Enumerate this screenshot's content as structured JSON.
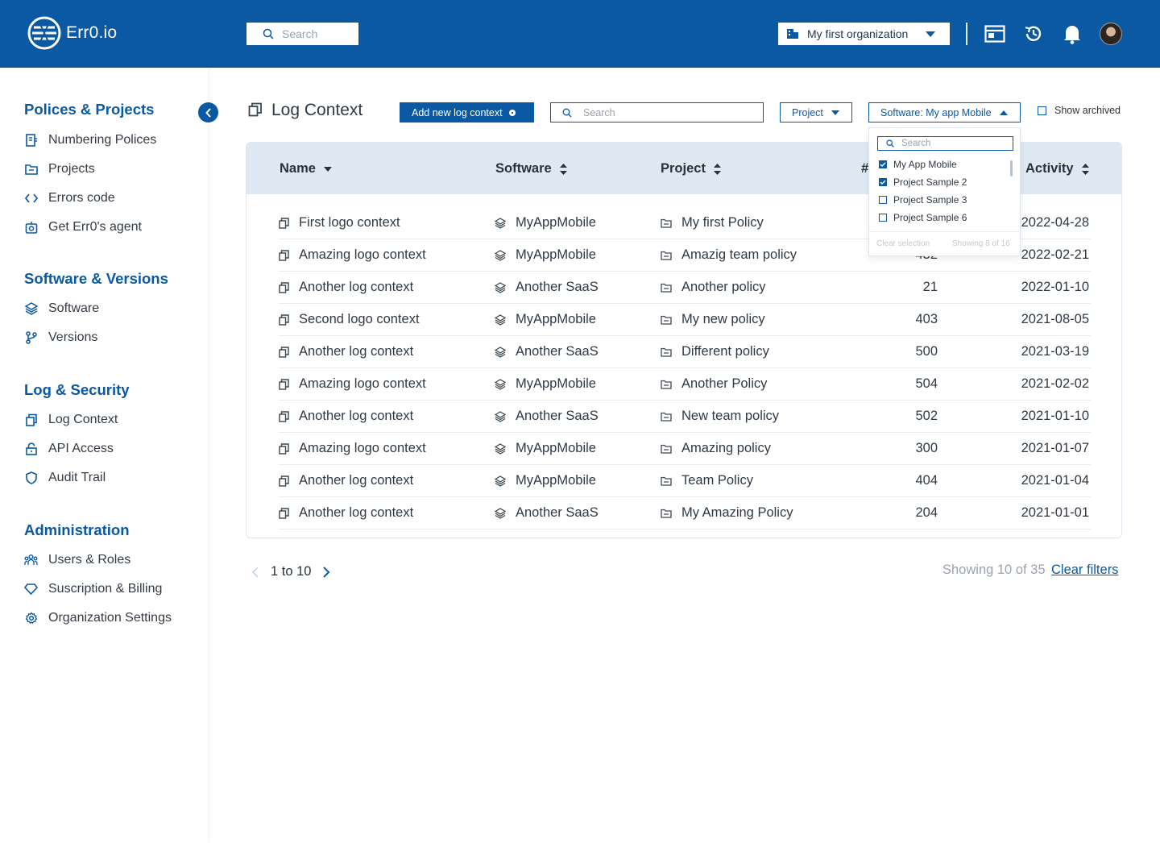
{
  "app": {
    "name": "Err0.io"
  },
  "topbar": {
    "search_placeholder": "Search",
    "org_label": "My first organization"
  },
  "sidebar": {
    "sections": [
      {
        "title": "Polices & Projects",
        "items": [
          "Numbering Polices",
          "Projects",
          "Errors code",
          "Get Err0's agent"
        ]
      },
      {
        "title": "Software & Versions",
        "items": [
          "Software",
          "Versions"
        ]
      },
      {
        "title": "Log & Security",
        "items": [
          "Log Context",
          "API Access",
          "Audit Trail"
        ]
      },
      {
        "title": "Administration",
        "items": [
          "Users & Roles",
          "Suscription & Billing",
          "Organization Settings"
        ]
      }
    ]
  },
  "page": {
    "title": "Log Context",
    "add_button": "Add new log context",
    "search_placeholder": "Search",
    "project_filter": "Project",
    "software_filter": "Software: My app Mobile",
    "show_archived": "Show archived"
  },
  "dropdown": {
    "search_placeholder": "Search",
    "options": [
      {
        "label": "My App Mobile",
        "checked": true
      },
      {
        "label": "Project Sample 2",
        "checked": true
      },
      {
        "label": "Project Sample 3",
        "checked": false
      },
      {
        "label": "Project Sample 6",
        "checked": false
      }
    ],
    "clear_selection": "Clear selection",
    "showing": "Showing 8 of 16"
  },
  "table": {
    "columns": {
      "name": "Name",
      "software": "Software",
      "project": "Project",
      "count": "#",
      "activity": "Activity"
    },
    "rows": [
      {
        "name": "First logo context",
        "software": "MyAppMobile",
        "project": "My first Policy",
        "count": "",
        "activity": "2022-04-28"
      },
      {
        "name": "Amazing logo context",
        "software": "MyAppMobile",
        "project": "Amazig team policy",
        "count": "432",
        "activity": "2022-02-21"
      },
      {
        "name": "Another log context",
        "software": "Another SaaS",
        "project": "Another policy",
        "count": "21",
        "activity": "2022-01-10"
      },
      {
        "name": "Second logo context",
        "software": "MyAppMobile",
        "project": "My new policy",
        "count": "403",
        "activity": "2021-08-05"
      },
      {
        "name": "Another log context",
        "software": "Another SaaS",
        "project": "Different policy",
        "count": "500",
        "activity": "2021-03-19"
      },
      {
        "name": "Amazing logo context",
        "software": "MyAppMobile",
        "project": "Another Policy",
        "count": "504",
        "activity": "2021-02-02"
      },
      {
        "name": "Another log context",
        "software": "Another SaaS",
        "project": "New team policy",
        "count": "502",
        "activity": "2021-01-10"
      },
      {
        "name": "Amazing logo context",
        "software": "MyAppMobile",
        "project": "Amazing policy",
        "count": "300",
        "activity": "2021-01-07"
      },
      {
        "name": "Another log context",
        "software": "MyAppMobile",
        "project": "Team Policy",
        "count": "404",
        "activity": "2021-01-04"
      },
      {
        "name": "Another log context",
        "software": "Another SaaS",
        "project": "My Amazing Policy",
        "count": "204",
        "activity": "2021-01-01"
      }
    ]
  },
  "pagination": {
    "range": "1 to 10",
    "showing": "Showing 10 of 35",
    "clear_filters": "Clear filters"
  },
  "colors": {
    "brand": "#0b58a3",
    "header_bg": "#dfe9f4"
  }
}
